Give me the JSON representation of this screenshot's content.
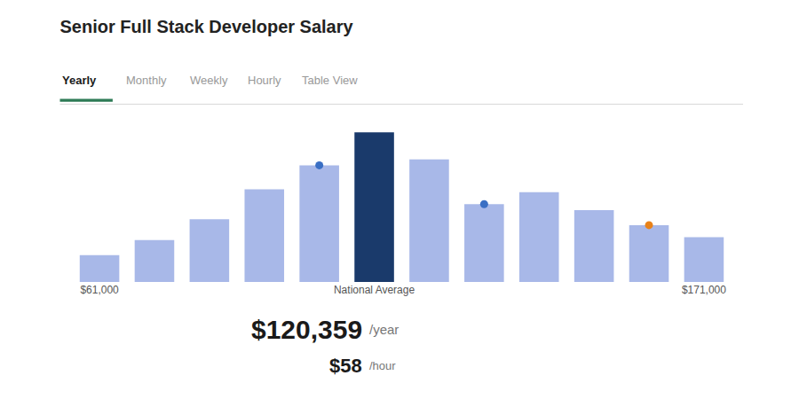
{
  "chart_data": {
    "type": "bar",
    "title": "Senior Full Stack Developer Salary",
    "categories": [
      "$61,000",
      null,
      null,
      null,
      null,
      "National Average",
      null,
      null,
      null,
      null,
      null,
      "$171,000"
    ],
    "series": [
      {
        "type": "bar",
        "values": [
          0.18,
          0.28,
          0.42,
          0.62,
          0.78,
          1.0,
          0.82,
          0.52,
          0.6,
          0.48,
          0.38,
          0.3
        ],
        "colors": [
          "#a8b8e8",
          "#a8b8e8",
          "#a8b8e8",
          "#a8b8e8",
          "#a8b8e8",
          "#1a3a6b",
          "#a8b8e8",
          "#a8b8e8",
          "#a8b8e8",
          "#a8b8e8",
          "#a8b8e8",
          "#a8b8e8"
        ]
      },
      {
        "type": "scatter",
        "marker": "circle",
        "color": "#3a6fc4",
        "values": [
          null,
          null,
          null,
          null,
          0.78,
          null,
          null,
          0.52,
          null,
          null,
          null,
          null
        ]
      },
      {
        "type": "scatter",
        "marker": "circle",
        "color": "#e8821a",
        "values": [
          null,
          null,
          null,
          null,
          null,
          null,
          null,
          null,
          null,
          null,
          0.38,
          null
        ]
      }
    ],
    "ylim": [
      0,
      1.15
    ],
    "grid": false,
    "tick_labels": "x",
    "annotations": [
      "Yearly",
      "Monthly",
      "Weekly",
      "Hourly",
      "Table View",
      "$120,359",
      "/year",
      "$58",
      "/hour"
    ]
  }
}
